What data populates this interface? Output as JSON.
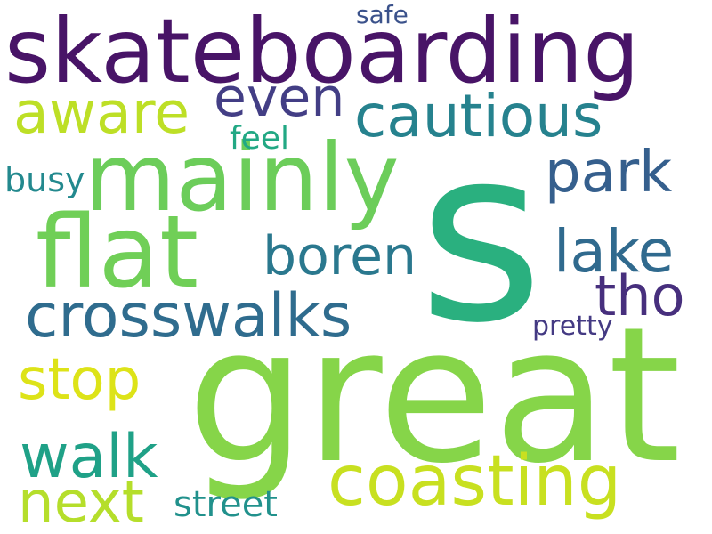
{
  "cloud": {
    "words": [
      {
        "id": "skateboarding",
        "text": "skateboarding",
        "color": "#481467"
      },
      {
        "id": "s",
        "text": "s",
        "color": "#2ab07f"
      },
      {
        "id": "great",
        "text": "great",
        "color": "#86d549"
      },
      {
        "id": "mainly",
        "text": "mainly",
        "color": "#6ccd5a"
      },
      {
        "id": "flat",
        "text": "flat",
        "color": "#70cf57"
      },
      {
        "id": "crosswalks",
        "text": "crosswalks",
        "color": "#2f6c8e"
      },
      {
        "id": "coasting",
        "text": "coasting",
        "color": "#c8e020"
      },
      {
        "id": "cautious",
        "text": "cautious",
        "color": "#26828e"
      },
      {
        "id": "aware",
        "text": "aware",
        "color": "#bddf26"
      },
      {
        "id": "boren",
        "text": "boren",
        "color": "#2a788e"
      },
      {
        "id": "lake",
        "text": "lake",
        "color": "#306a8e"
      },
      {
        "id": "park",
        "text": "park",
        "color": "#355f8d"
      },
      {
        "id": "even",
        "text": "even",
        "color": "#433e85"
      },
      {
        "id": "tho",
        "text": "tho",
        "color": "#472f7d"
      },
      {
        "id": "stop",
        "text": "stop",
        "color": "#dde318"
      },
      {
        "id": "walk",
        "text": "walk",
        "color": "#1fa187"
      },
      {
        "id": "next",
        "text": "next",
        "color": "#b5de2b"
      },
      {
        "id": "street",
        "text": "street",
        "color": "#21918c"
      },
      {
        "id": "busy",
        "text": "busy",
        "color": "#23898e"
      },
      {
        "id": "feel",
        "text": "feel",
        "color": "#22a884"
      },
      {
        "id": "safe",
        "text": "safe",
        "color": "#3b528b"
      },
      {
        "id": "pretty",
        "text": "pretty",
        "color": "#443a83"
      }
    ]
  }
}
